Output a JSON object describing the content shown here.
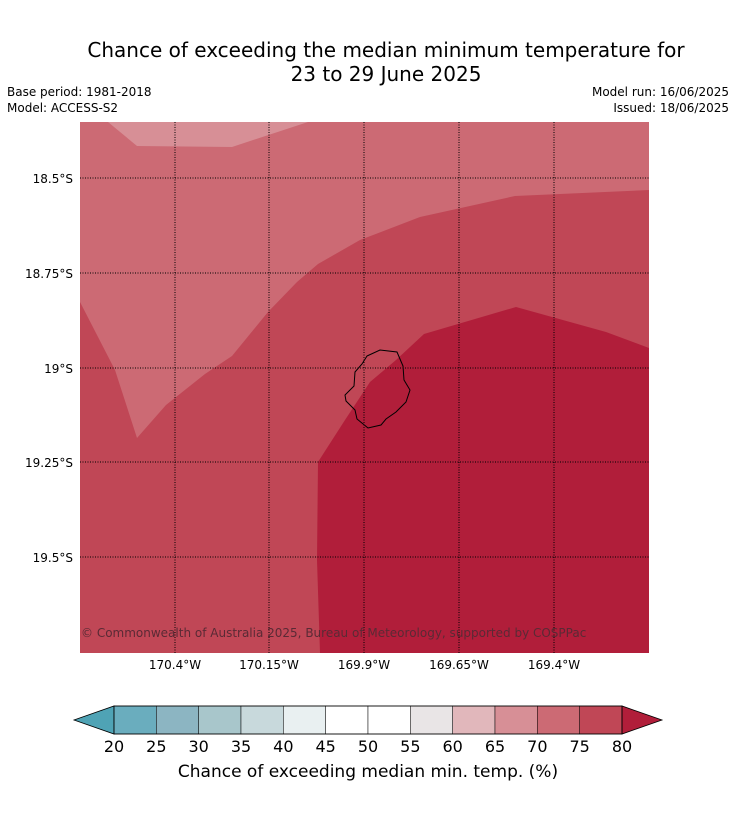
{
  "title": {
    "line1": "Chance of exceeding the median minimum temperature for",
    "line2": "23 to 29 June 2025"
  },
  "meta": {
    "base_period": "Base period: 1981-2018",
    "model": "Model: ACCESS-S2",
    "model_run": "Model run: 16/06/2025",
    "issued": "Issued: 18/06/2025"
  },
  "map": {
    "copyright": "© Commonwealth of Australia 2025, Bureau of Meteorology, supported by COSPPac",
    "lon_labels": [
      "170.4°W",
      "170.15°W",
      "169.9°W",
      "169.65°W",
      "169.4°W"
    ],
    "lat_labels": [
      "18.5°S",
      "18.75°S",
      "19°S",
      "19.25°S",
      "19.5°S"
    ]
  },
  "colorbar": {
    "label": "Chance of exceeding median min. temp. (%)",
    "ticks": [
      "20",
      "25",
      "30",
      "35",
      "40",
      "45",
      "50",
      "55",
      "60",
      "65",
      "70",
      "75",
      "80"
    ],
    "colors": [
      "#6aadbe",
      "#8cb5c2",
      "#a8c6cb",
      "#c8d9dc",
      "#e9f0f1",
      "#ffffff",
      "#ffffff",
      "#e9e5e6",
      "#e1b7bb",
      "#d78f96",
      "#cc6a74",
      "#c04756"
    ],
    "under_color": "#4fa3b5",
    "over_color": "#b11e3a"
  }
}
